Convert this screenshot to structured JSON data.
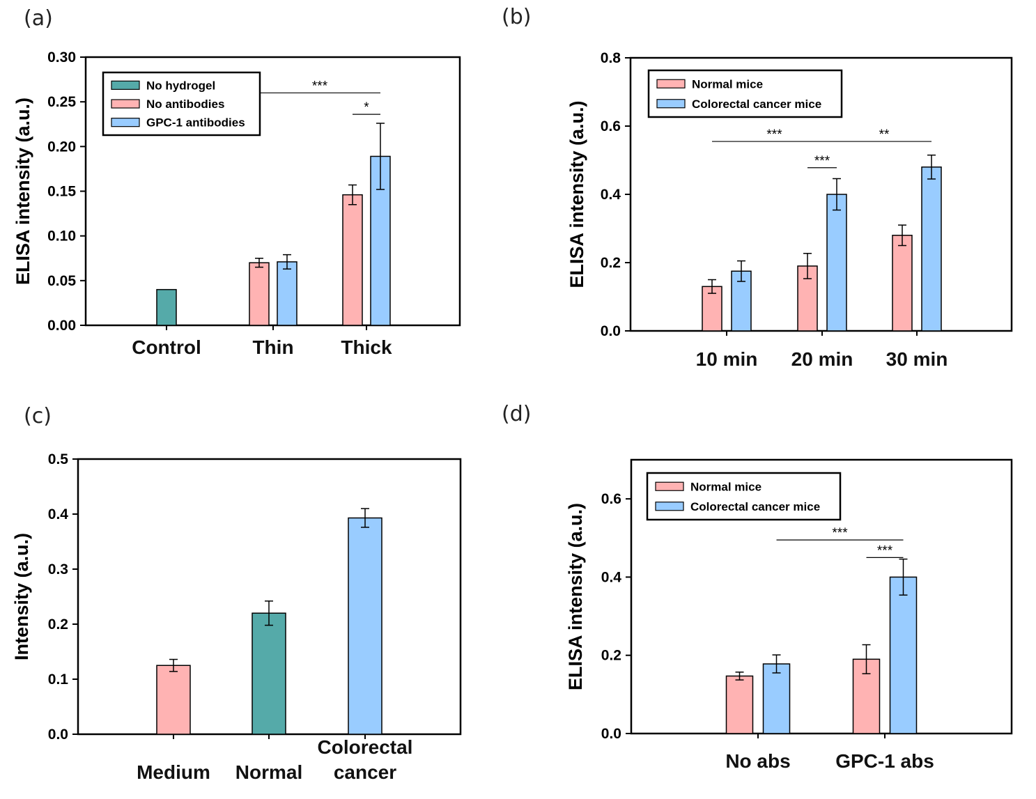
{
  "colors": {
    "teal": "#55aaa9",
    "pink": "#ffb3b3",
    "blue": "#99ccff",
    "axis": "#000000"
  },
  "chart_data": [
    {
      "panel": "(a)",
      "type": "bar",
      "ylabel": "ELISA intensity (a.u.)",
      "ylim": [
        0,
        0.3
      ],
      "yticks": [
        "0.00",
        "0.05",
        "0.10",
        "0.15",
        "0.20",
        "0.25",
        "0.30"
      ],
      "legend_position": "top-left",
      "categories": [
        "Control",
        "Thin",
        "Thick"
      ],
      "series": [
        {
          "name": "No hydrogel",
          "color": "#55aaa9",
          "values": [
            0.04,
            null,
            null
          ],
          "errors": [
            null,
            null,
            null
          ]
        },
        {
          "name": "No antibodies",
          "color": "#ffb3b3",
          "values": [
            null,
            0.07,
            0.146
          ],
          "errors": [
            null,
            0.005,
            0.011
          ]
        },
        {
          "name": "GPC-1 antibodies",
          "color": "#99ccff",
          "values": [
            null,
            0.071,
            0.189
          ],
          "errors": [
            null,
            0.008,
            0.037
          ]
        }
      ],
      "significance": [
        {
          "label": "***",
          "y": 0.26,
          "from": [
            1,
            1
          ],
          "to": [
            2,
            2
          ]
        },
        {
          "label": "*",
          "y": 0.236,
          "from": [
            2,
            1
          ],
          "to": [
            2,
            2
          ]
        }
      ]
    },
    {
      "panel": "(b)",
      "type": "bar",
      "ylabel": "ELISA intensity (a.u.)",
      "ylim": [
        0,
        0.8
      ],
      "yticks": [
        "0.0",
        "0.2",
        "0.4",
        "0.6",
        "0.8"
      ],
      "legend_position": "top-left",
      "categories": [
        "10 min",
        "20 min",
        "30 min"
      ],
      "series": [
        {
          "name": "Normal mice",
          "color": "#ffb3b3",
          "values": [
            0.13,
            0.19,
            0.28
          ],
          "errors": [
            0.02,
            0.037,
            0.03
          ]
        },
        {
          "name": "Colorectal cancer mice",
          "color": "#99ccff",
          "values": [
            0.175,
            0.4,
            0.48
          ],
          "errors": [
            0.03,
            0.046,
            0.035
          ]
        }
      ],
      "significance": [
        {
          "label": "***",
          "y": 0.555,
          "from": [
            0,
            0
          ],
          "to": [
            1,
            1
          ]
        },
        {
          "label": "**",
          "y": 0.555,
          "from": [
            1,
            1
          ],
          "to": [
            2,
            1
          ]
        },
        {
          "label": "***",
          "y": 0.478,
          "from": [
            1,
            0
          ],
          "to": [
            1,
            1
          ]
        }
      ]
    },
    {
      "panel": "(c)",
      "type": "bar",
      "ylabel": "Intensity (a.u.)",
      "ylim": [
        0,
        0.5
      ],
      "yticks": [
        "0.0",
        "0.1",
        "0.2",
        "0.3",
        "0.4",
        "0.5"
      ],
      "categories": [
        "Medium",
        "Normal",
        "Colorectal cancer"
      ],
      "category_lines": [
        [
          "Medium"
        ],
        [
          "Normal"
        ],
        [
          "Colorectal",
          "cancer"
        ]
      ],
      "bars": [
        {
          "value": 0.125,
          "error": 0.011,
          "color": "#ffb3b3"
        },
        {
          "value": 0.22,
          "error": 0.022,
          "color": "#55aaa9"
        },
        {
          "value": 0.393,
          "error": 0.017,
          "color": "#99ccff"
        }
      ]
    },
    {
      "panel": "(d)",
      "type": "bar",
      "ylabel": "ELISA intensity (a.u.)",
      "ylim": [
        0,
        0.7
      ],
      "yticks": [
        "0.0",
        "0.2",
        "0.4",
        "0.6"
      ],
      "legend_position": "top-left",
      "categories": [
        "No abs",
        "GPC-1 abs"
      ],
      "series": [
        {
          "name": "Normal mice",
          "color": "#ffb3b3",
          "values": [
            0.147,
            0.19
          ],
          "errors": [
            0.01,
            0.037
          ]
        },
        {
          "name": "Colorectal cancer mice",
          "color": "#99ccff",
          "values": [
            0.178,
            0.4
          ],
          "errors": [
            0.023,
            0.046
          ]
        }
      ],
      "significance": [
        {
          "label": "***",
          "y": 0.495,
          "from": [
            0,
            1
          ],
          "to": [
            1,
            1
          ]
        },
        {
          "label": "***",
          "y": 0.45,
          "from": [
            1,
            0
          ],
          "to": [
            1,
            1
          ]
        }
      ]
    }
  ]
}
